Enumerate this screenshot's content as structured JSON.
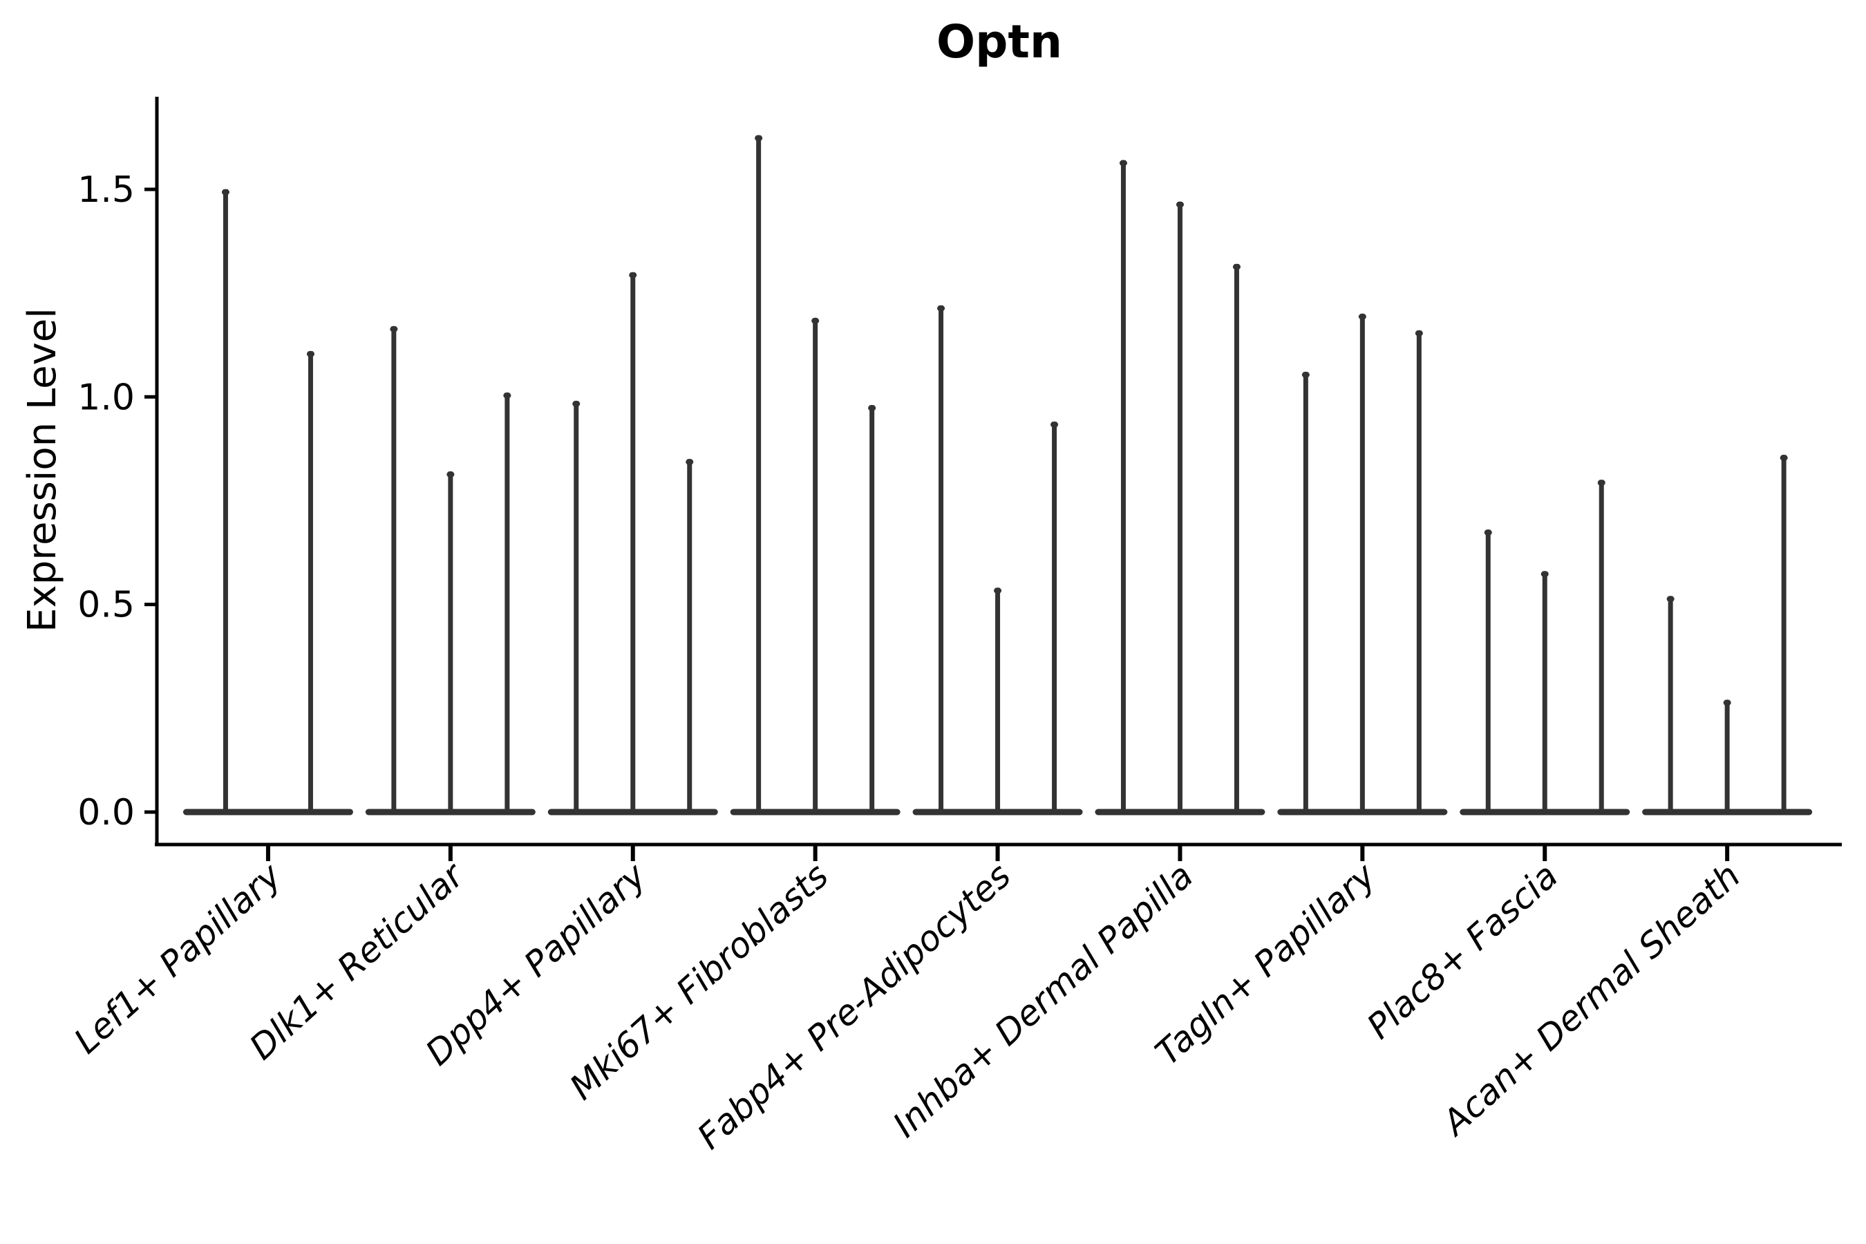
{
  "title": "Optn",
  "ylabel": "Expression Level",
  "colors": {
    "violin": "#333333",
    "axis": "#000000",
    "background": "#ffffff"
  },
  "chart_data": {
    "type": "violin",
    "title": "Optn",
    "xlabel": "",
    "ylabel": "Expression Level",
    "ylim": [
      -0.08,
      1.72
    ],
    "yticks": [
      0.0,
      0.5,
      1.0,
      1.5
    ],
    "ytick_labels": [
      "0.0",
      "0.5",
      "1.0",
      "1.5"
    ],
    "grid": false,
    "legend": false,
    "spines": [
      "left",
      "bottom"
    ],
    "xtick_label_rotation_deg": 42,
    "xtick_label_style": "italic",
    "baseline_value": 0.0,
    "categories": [
      "Lef1+ Papillary",
      "Dlk1+ Reticular",
      "Dpp4+ Papillary",
      "Mki67+ Fibroblasts",
      "Fabp4+ Pre-Adipocytes",
      "Inhba+ Dermal Papilla",
      "Tagln+ Papillary",
      "Plac8+ Fascia",
      "Acan+ Dermal Sheath"
    ],
    "groups": [
      {
        "category": "Lef1+ Papillary",
        "violin_max_values": [
          1.5,
          1.11
        ]
      },
      {
        "category": "Dlk1+ Reticular",
        "violin_max_values": [
          1.17,
          0.82,
          1.01
        ]
      },
      {
        "category": "Dpp4+ Papillary",
        "violin_max_values": [
          0.99,
          1.3,
          0.85
        ]
      },
      {
        "category": "Mki67+ Fibroblasts",
        "violin_max_values": [
          1.63,
          1.19,
          0.98
        ]
      },
      {
        "category": "Fabp4+ Pre-Adipocytes",
        "violin_max_values": [
          1.22,
          0.54,
          0.94
        ]
      },
      {
        "category": "Inhba+ Dermal Papilla",
        "violin_max_values": [
          1.57,
          1.47,
          1.32
        ]
      },
      {
        "category": "Tagln+ Papillary",
        "violin_max_values": [
          1.06,
          1.2,
          1.16
        ]
      },
      {
        "category": "Plac8+ Fascia",
        "violin_max_values": [
          0.68,
          0.58,
          0.8
        ]
      },
      {
        "category": "Acan+ Dermal Sheath",
        "violin_max_values": [
          0.52,
          0.27,
          0.86
        ]
      }
    ]
  }
}
